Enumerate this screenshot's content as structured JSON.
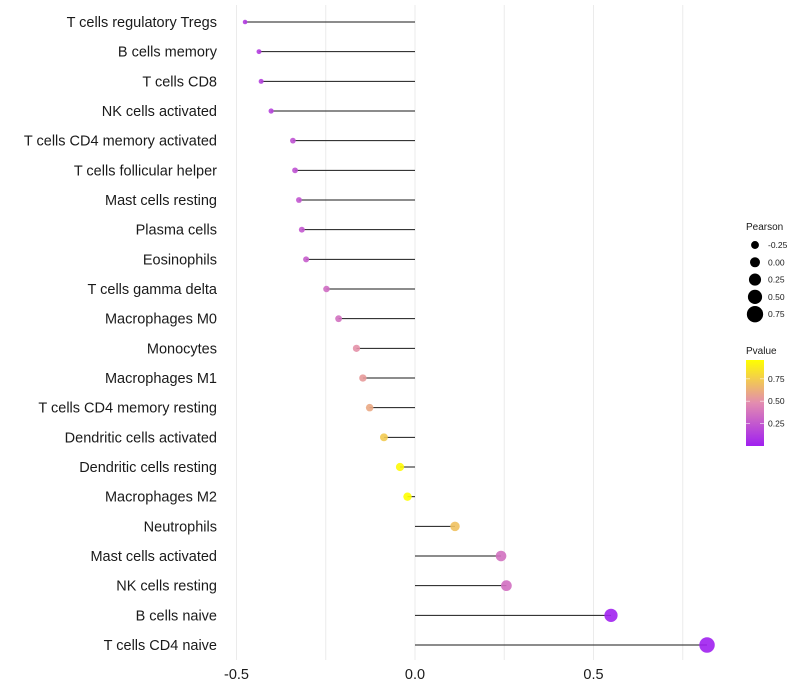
{
  "chart_data": {
    "type": "lollipop",
    "title": "",
    "xlabel": "",
    "ylabel": "",
    "xlim": [
      -0.5,
      0.85
    ],
    "x_ticks": [
      -0.5,
      0.0,
      0.5
    ],
    "x_tick_labels": [
      "-0.5",
      "0.0",
      "0.5"
    ],
    "grid": true,
    "categories": [
      "T cells regulatory  Tregs",
      "B cells memory",
      "T cells CD8",
      "NK cells activated",
      "T cells CD4 memory activated",
      "T cells follicular helper",
      "Mast cells resting",
      "Plasma cells",
      "Eosinophils",
      "T cells gamma delta",
      "Macrophages M0",
      "Monocytes",
      "Macrophages M1",
      "T cells CD4 memory resting",
      "Dendritic cells activated",
      "Dendritic cells resting",
      "Macrophages M2",
      "Neutrophils",
      "Mast cells activated",
      "NK cells resting",
      "B cells naive",
      "T cells CD4 naive"
    ],
    "pearson": [
      -0.476,
      -0.437,
      -0.431,
      -0.403,
      -0.342,
      -0.336,
      -0.325,
      -0.317,
      -0.305,
      -0.248,
      -0.214,
      -0.164,
      -0.146,
      -0.127,
      -0.087,
      -0.042,
      -0.021,
      0.112,
      0.241,
      0.256,
      0.549,
      0.818
    ],
    "pvalue": [
      0.12,
      0.13,
      0.14,
      0.16,
      0.22,
      0.22,
      0.24,
      0.25,
      0.27,
      0.34,
      0.36,
      0.5,
      0.54,
      0.6,
      0.74,
      0.94,
      0.96,
      0.7,
      0.36,
      0.35,
      0.01,
      0.0
    ],
    "legend": {
      "size": {
        "title": "Pearson",
        "values": [
          -0.25,
          0.0,
          0.25,
          0.5,
          0.75
        ],
        "labels": [
          "-0.25",
          "0.00",
          "0.25",
          "0.50",
          "0.75"
        ]
      },
      "color": {
        "title": "Pvalue",
        "range": [
          0.0,
          0.96
        ],
        "ticks": [
          0.25,
          0.5,
          0.75
        ],
        "tick_labels": [
          "0.25",
          "0.50",
          "0.75"
        ],
        "low_color": "#A020F0",
        "high_color": "#FFFF00"
      },
      "placement": "right"
    }
  }
}
